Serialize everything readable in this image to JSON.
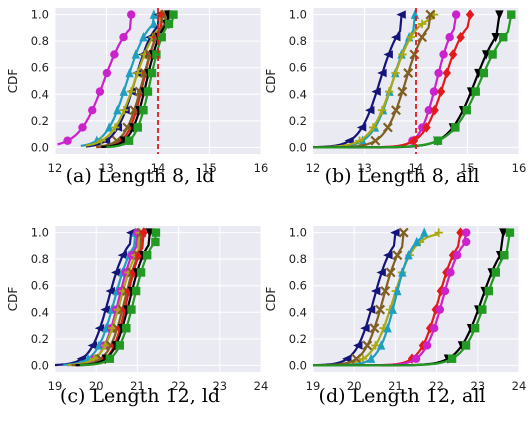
{
  "chart_data": [
    {
      "type": "line",
      "title": "(a) Length 8, ld",
      "ylabel": "CDF",
      "xlim": [
        12,
        16
      ],
      "ylim": [
        0,
        1
      ],
      "xticks": [
        "12",
        "13",
        "14",
        "15",
        "16"
      ],
      "yticks": [
        "0.0",
        "0.2",
        "0.4",
        "0.6",
        "0.8",
        "1.0"
      ],
      "grid": true,
      "vline": 14.0,
      "series": [
        {
          "color": "#cc22cc",
          "marker": "circle",
          "mu": 12.95,
          "s": 0.24,
          "xmin": 12.05,
          "xmax": 13.48
        },
        {
          "color": "#1f9fc0",
          "marker": "triangle-up",
          "mu": 13.4,
          "s": 0.2,
          "xmin": 12.5,
          "xmax": 13.92
        },
        {
          "color": "#14147a",
          "marker": "triangle-left",
          "mu": 13.55,
          "s": 0.19,
          "xmin": 12.6,
          "xmax": 14.02
        },
        {
          "color": "#aaaa10",
          "marker": "plus",
          "mu": 13.55,
          "s": 0.22,
          "xmin": 12.6,
          "xmax": 14.05
        },
        {
          "color": "#e31a1c",
          "marker": "diamond",
          "mu": 13.72,
          "s": 0.15,
          "xmin": 12.8,
          "xmax": 14.08
        },
        {
          "color": "#806020",
          "marker": "x",
          "mu": 13.7,
          "s": 0.17,
          "xmin": 12.8,
          "xmax": 14.15
        },
        {
          "color": "#000000",
          "marker": "triangle-down",
          "mu": 13.78,
          "s": 0.15,
          "xmin": 12.9,
          "xmax": 14.2
        },
        {
          "color": "#229922",
          "marker": "square",
          "mu": 13.85,
          "s": 0.14,
          "xmin": 13.0,
          "xmax": 14.3
        }
      ]
    },
    {
      "type": "line",
      "title": "(b) Length 8, all",
      "ylabel": "CDF",
      "xlim": [
        12,
        16
      ],
      "ylim": [
        0,
        1
      ],
      "xticks": [
        "12",
        "13",
        "14",
        "15",
        "16"
      ],
      "yticks": [
        "0.0",
        "0.2",
        "0.4",
        "0.6",
        "0.8",
        "1.0"
      ],
      "grid": true,
      "vline": 14.0,
      "series": [
        {
          "color": "#14147a",
          "marker": "triangle-left",
          "mu": 13.3,
          "s": 0.2,
          "xmin": 12.0,
          "xmax": 13.72
        },
        {
          "color": "#1f9fc0",
          "marker": "triangle-up",
          "mu": 13.55,
          "s": 0.2,
          "xmin": 12.0,
          "xmax": 13.98
        },
        {
          "color": "#aaaa10",
          "marker": "plus",
          "mu": 13.55,
          "s": 0.22,
          "xmin": 12.0,
          "xmax": 14.35
        },
        {
          "color": "#806020",
          "marker": "x",
          "mu": 13.8,
          "s": 0.2,
          "xmin": 12.0,
          "xmax": 14.28
        },
        {
          "color": "#cc22cc",
          "marker": "circle",
          "mu": 14.4,
          "s": 0.16,
          "xmin": 12.0,
          "xmax": 14.78
        },
        {
          "color": "#e31a1c",
          "marker": "diamond",
          "mu": 14.55,
          "s": 0.2,
          "xmin": 12.0,
          "xmax": 15.05
        },
        {
          "color": "#000000",
          "marker": "triangle-down",
          "mu": 15.15,
          "s": 0.25,
          "xmin": 12.0,
          "xmax": 15.62
        },
        {
          "color": "#229922",
          "marker": "square",
          "mu": 15.25,
          "s": 0.28,
          "xmin": 12.0,
          "xmax": 15.85
        }
      ]
    },
    {
      "type": "line",
      "title": "(c) Length 12, ld",
      "ylabel": "CDF",
      "xlim": [
        19,
        24
      ],
      "ylim": [
        0,
        1
      ],
      "xticks": [
        "19",
        "20",
        "21",
        "22",
        "23",
        "24"
      ],
      "yticks": [
        "0.0",
        "0.2",
        "0.4",
        "0.6",
        "0.8",
        "1.0"
      ],
      "grid": true,
      "series": [
        {
          "color": "#14147a",
          "marker": "triangle-left",
          "mu": 20.3,
          "s": 0.22,
          "xmin": 19.0,
          "xmax": 20.85
        },
        {
          "color": "#1f9fc0",
          "marker": "triangle-up",
          "mu": 20.45,
          "s": 0.22,
          "xmin": 19.2,
          "xmax": 20.95
        },
        {
          "color": "#cc22cc",
          "marker": "circle",
          "mu": 20.55,
          "s": 0.2,
          "xmin": 19.3,
          "xmax": 21.0
        },
        {
          "color": "#aaaa10",
          "marker": "plus",
          "mu": 20.6,
          "s": 0.22,
          "xmin": 19.3,
          "xmax": 21.05
        },
        {
          "color": "#806020",
          "marker": "x",
          "mu": 20.7,
          "s": 0.2,
          "xmin": 19.4,
          "xmax": 21.1
        },
        {
          "color": "#e31a1c",
          "marker": "diamond",
          "mu": 20.75,
          "s": 0.18,
          "xmin": 19.5,
          "xmax": 21.15
        },
        {
          "color": "#000000",
          "marker": "triangle-down",
          "mu": 20.82,
          "s": 0.2,
          "xmin": 19.5,
          "xmax": 21.3
        },
        {
          "color": "#229922",
          "marker": "square",
          "mu": 20.92,
          "s": 0.2,
          "xmin": 19.6,
          "xmax": 21.45
        }
      ]
    },
    {
      "type": "line",
      "title": "(d) Length 12, all",
      "ylabel": "CDF",
      "xlim": [
        19,
        24
      ],
      "ylim": [
        0,
        1
      ],
      "xticks": [
        "19",
        "20",
        "21",
        "22",
        "23",
        "24"
      ],
      "yticks": [
        "0.0",
        "0.2",
        "0.4",
        "0.6",
        "0.8",
        "1.0"
      ],
      "grid": true,
      "series": [
        {
          "color": "#14147a",
          "marker": "triangle-left",
          "mu": 20.48,
          "s": 0.22,
          "xmin": 19.0,
          "xmax": 21.0
        },
        {
          "color": "#aaaa10",
          "marker": "plus",
          "mu": 20.95,
          "s": 0.25,
          "xmin": 19.0,
          "xmax": 22.05
        },
        {
          "color": "#806020",
          "marker": "x",
          "mu": 20.7,
          "s": 0.22,
          "xmin": 19.0,
          "xmax": 21.2
        },
        {
          "color": "#1f9fc0",
          "marker": "triangle-up",
          "mu": 21.0,
          "s": 0.2,
          "xmin": 19.0,
          "xmax": 21.7
        },
        {
          "color": "#e31a1c",
          "marker": "diamond",
          "mu": 22.05,
          "s": 0.22,
          "xmin": 19.0,
          "xmax": 22.58
        },
        {
          "color": "#cc22cc",
          "marker": "circle",
          "mu": 22.15,
          "s": 0.22,
          "xmin": 19.0,
          "xmax": 22.72
        },
        {
          "color": "#000000",
          "marker": "triangle-down",
          "mu": 23.1,
          "s": 0.28,
          "xmin": 19.0,
          "xmax": 23.62
        },
        {
          "color": "#229922",
          "marker": "square",
          "mu": 23.2,
          "s": 0.28,
          "xmin": 19.0,
          "xmax": 23.78
        }
      ]
    }
  ],
  "colors": {
    "plot_background": "#eaeaf2",
    "grid": "#ffffff",
    "vline": "#e31a1c"
  }
}
